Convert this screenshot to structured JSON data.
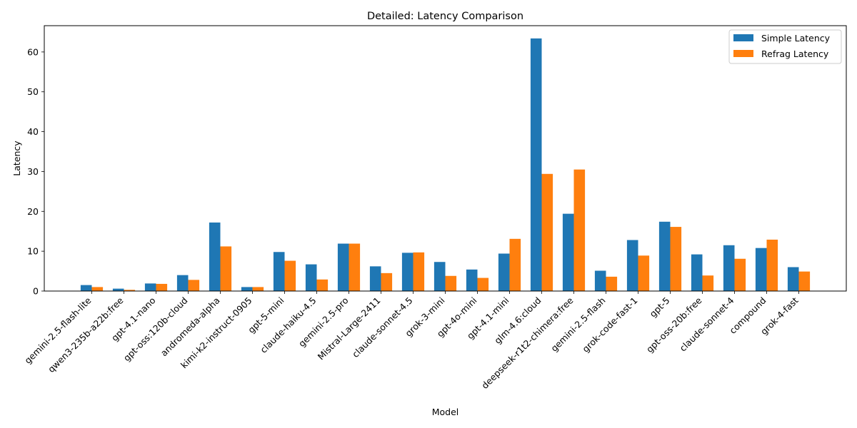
{
  "chart_data": {
    "type": "bar",
    "title": "Detailed: Latency Comparison",
    "xlabel": "Model",
    "ylabel": "Latency",
    "ylim": [
      0,
      66.6
    ],
    "yticks": [
      0,
      10,
      20,
      30,
      40,
      50,
      60
    ],
    "grid": false,
    "legend_position": "top-right",
    "categories": [
      "gemini-2.5-flash-lite",
      "qwen3-235b-a22b:free",
      "gpt-4.1-nano",
      "gpt-oss:120b-cloud",
      "andromeda-alpha",
      "kimi-k2-instruct-0905",
      "gpt-5-mini",
      "claude-haiku-4.5",
      "gemini-2.5-pro",
      "Mistral-Large-2411",
      "claude-sonnet-4.5",
      "grok-3-mini",
      "gpt-4o-mini",
      "gpt-4.1-mini",
      "glm-4.6:cloud",
      "deepseek-r1t2-chimera:free",
      "gemini-2.5-flash",
      "grok-code-fast-1",
      "gpt-5",
      "gpt-oss-20b:free",
      "claude-sonnet-4",
      "compound",
      "grok-4-fast"
    ],
    "series": [
      {
        "name": "Simple Latency",
        "color": "#1f77b4",
        "values": [
          1.5,
          0.6,
          1.9,
          4.0,
          17.2,
          1.0,
          9.8,
          6.7,
          11.9,
          6.2,
          9.6,
          7.3,
          5.4,
          9.4,
          63.4,
          19.4,
          5.1,
          12.8,
          17.4,
          9.2,
          11.5,
          10.8,
          6.0
        ]
      },
      {
        "name": "Refrag Latency",
        "color": "#ff7f0e",
        "values": [
          1.0,
          0.3,
          1.8,
          2.8,
          11.2,
          1.0,
          7.6,
          2.9,
          11.9,
          4.5,
          9.7,
          3.8,
          3.3,
          13.1,
          29.4,
          30.5,
          3.6,
          8.9,
          16.1,
          3.9,
          8.1,
          12.9,
          4.9
        ]
      }
    ]
  }
}
